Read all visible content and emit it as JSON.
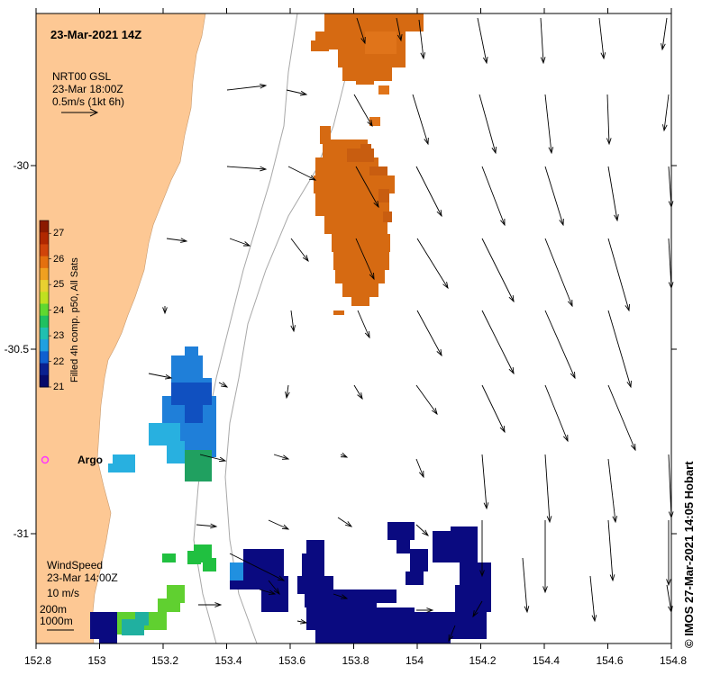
{
  "map": {
    "title": "23-Mar-2021 14Z",
    "credit": "© IMOS 27-Mar-2021 14:05 Hobart",
    "x_ticks": [
      "152.8",
      "153",
      "153.2",
      "153.4",
      "153.6",
      "153.8",
      "154",
      "154.2",
      "154.4",
      "154.6",
      "154.8"
    ],
    "y_ticks": [
      "-30",
      "-30.5",
      "-31"
    ],
    "lon_range": [
      152.8,
      154.8
    ],
    "lat_range": [
      -29.6,
      -31.31
    ]
  },
  "current_legend": {
    "line1": "NRT00 GSL",
    "line2": "23-Mar 18:00Z",
    "line3": "0.5m/s (1kt 6h)"
  },
  "wind_legend": {
    "line1": "WindSpeed",
    "line2": "23-Mar 14:00Z",
    "line3": "10 m/s"
  },
  "depth_legend": {
    "line1": "200m",
    "line2": "1000m"
  },
  "colorbar": {
    "label": "Filled 4h comp. p50, All Sats",
    "ticks": [
      "27",
      "26",
      "25",
      "24",
      "23",
      "22",
      "21"
    ],
    "min": 21,
    "max": 27.5
  },
  "argo": {
    "label": "Argo",
    "color": "#ff33ff"
  },
  "colors": {
    "land": "#fdc894",
    "ocean": "#ffffff",
    "warm_patch": "#d66a12",
    "cold_patch": "#0a0a80",
    "mid_patch": "#1f7fd9"
  }
}
